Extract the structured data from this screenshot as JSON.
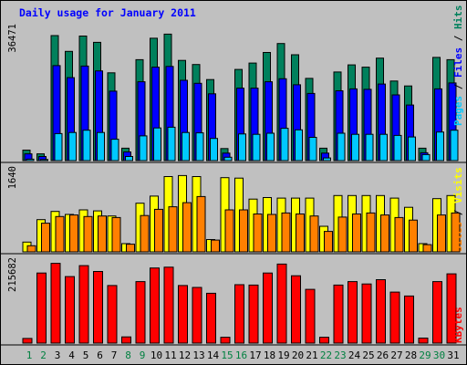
{
  "title": "Daily usage for January 2011",
  "colors": {
    "background": "#c0c0c0",
    "title": "#0000ff",
    "hits": "#00805c",
    "files": "#0000ff",
    "pages": "#00c8ff",
    "visits": "#ffff00",
    "sites": "#ff8000",
    "kbytes": "#ff0000",
    "weekend_day_label": "#008040",
    "weekday_day_label": "#000000",
    "separator": "#000000"
  },
  "side_labels": {
    "top": [
      "Pages",
      "Files",
      "Hits"
    ],
    "middle": [
      "Sites",
      "Visits"
    ],
    "bottom": [
      "KBytes"
    ],
    "sep": " / "
  },
  "chart_data": {
    "type": "bar",
    "categories": [
      "1",
      "2",
      "3",
      "4",
      "5",
      "6",
      "7",
      "8",
      "9",
      "10",
      "11",
      "12",
      "13",
      "14",
      "15",
      "16",
      "17",
      "18",
      "19",
      "20",
      "21",
      "22",
      "23",
      "24",
      "25",
      "26",
      "27",
      "28",
      "29",
      "30",
      "31"
    ],
    "weekend_days": [
      "1",
      "2",
      "8",
      "9",
      "15",
      "16",
      "22",
      "23",
      "29",
      "30"
    ],
    "panels": [
      {
        "name": "top",
        "ymax_label": "36471",
        "ylim": [
          0,
          36471
        ],
        "series": [
          {
            "name": "Hits",
            "values": [
              2800,
              1800,
              33300,
              29100,
              33200,
              31500,
              23400,
              3300,
              26900,
              32600,
              33700,
              26700,
              25600,
              21600,
              3200,
              24300,
              26000,
              28800,
              31200,
              28200,
              21900,
              3300,
              23600,
              25500,
              24900,
              27300,
              21200,
              19900,
              3300,
              27500,
              26900
            ]
          },
          {
            "name": "Files",
            "values": [
              1800,
              1100,
              25300,
              22100,
              25200,
              23900,
              18500,
              2300,
              21000,
              24900,
              25100,
              21400,
              20600,
              17800,
              2000,
              19300,
              19300,
              21000,
              21800,
              20200,
              17900,
              2000,
              18600,
              19100,
              19000,
              20400,
              17500,
              14800,
              2100,
              19100,
              20700
            ]
          },
          {
            "name": "Pages",
            "values": [
              400,
              300,
              7200,
              7500,
              8100,
              7500,
              5700,
              1100,
              6600,
              8700,
              8900,
              7500,
              7400,
              5900,
              900,
              7100,
              7000,
              7300,
              8600,
              8200,
              6200,
              700,
              7300,
              7000,
              7000,
              7000,
              6700,
              6300,
              1600,
              7600,
              8100
            ]
          }
        ]
      },
      {
        "name": "middle",
        "ymax_label": "1640",
        "ylim": [
          0,
          1640
        ],
        "series": [
          {
            "name": "Visits",
            "values": [
              190,
              630,
              790,
              730,
              820,
              800,
              700,
              160,
              950,
              1090,
              1470,
              1490,
              1470,
              240,
              1450,
              1440,
              1030,
              1060,
              1050,
              1050,
              1050,
              500,
              1100,
              1100,
              1100,
              1100,
              1050,
              870,
              160,
              1040,
              1100
            ]
          },
          {
            "name": "Sites",
            "values": [
              120,
              560,
              690,
              720,
              690,
              700,
              670,
              150,
              710,
              830,
              880,
              960,
              1080,
              230,
              820,
              820,
              740,
              730,
              760,
              740,
              700,
              400,
              680,
              740,
              760,
              720,
              670,
              620,
              140,
              720,
              760
            ]
          }
        ]
      },
      {
        "name": "bottom",
        "ymax_label": "215682",
        "ylim": [
          0,
          215682
        ],
        "series": [
          {
            "name": "KBytes",
            "values": [
              12000,
              180000,
              205000,
              171000,
              199000,
              184000,
              148000,
              16000,
              158000,
              193000,
              195000,
              148000,
              143000,
              128000,
              15000,
              150000,
              149000,
              180000,
              203000,
              173000,
              138000,
              15000,
              149000,
              158000,
              152000,
              163000,
              131000,
              121000,
              13000,
              158000,
              178000
            ]
          }
        ]
      }
    ]
  }
}
